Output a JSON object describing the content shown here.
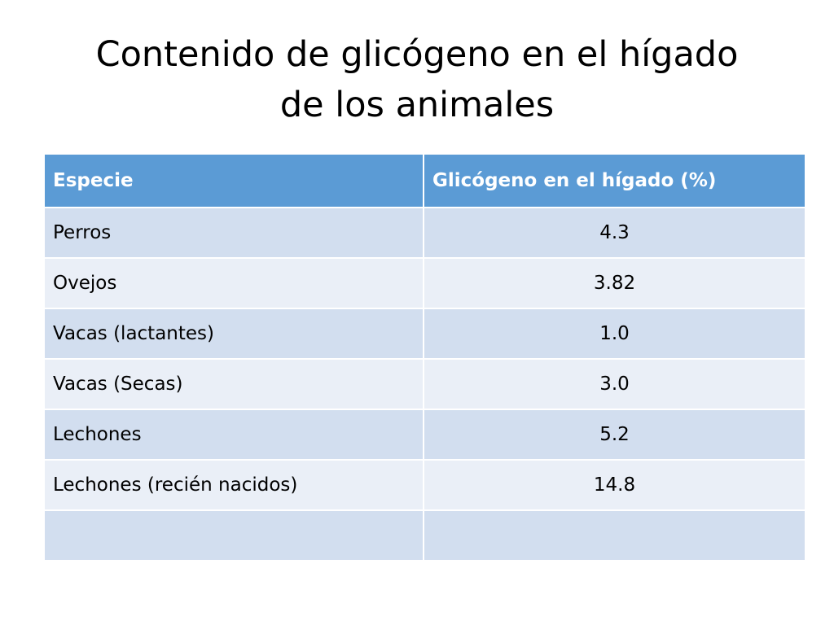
{
  "title": {
    "line1": "Contenido de glicógeno en el hígado",
    "line2": "de los animales"
  },
  "table": {
    "headers": [
      "Especie",
      "Glicógeno en el hígado (%)"
    ],
    "rows": [
      [
        "Perros",
        "4.3"
      ],
      [
        "Ovejos",
        "3.82"
      ],
      [
        "Vacas (lactantes)",
        "1.0"
      ],
      [
        "Vacas (Secas)",
        "3.0"
      ],
      [
        "Lechones",
        "5.2"
      ],
      [
        "Lechones (recién nacidos)",
        "14.8"
      ],
      [
        "",
        ""
      ]
    ]
  },
  "colors": {
    "header_bg": "#5b9bd5",
    "row_odd_bg": "#d2deef",
    "row_even_bg": "#eaeff7"
  }
}
